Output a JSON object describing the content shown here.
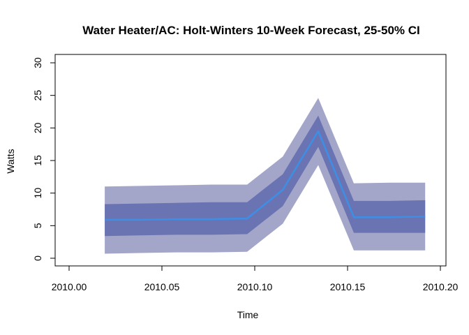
{
  "chart_data": {
    "type": "area",
    "title": "Water Heater/AC: Holt-Winters 10-Week Forecast, 25-50% CI",
    "xlabel": "Time",
    "ylabel": "Watts",
    "xlim": [
      2010.0,
      2010.2
    ],
    "ylim": [
      0,
      30
    ],
    "x_ticks": [
      "2010.00",
      "2010.05",
      "2010.10",
      "2010.15",
      "2010.20"
    ],
    "y_ticks": [
      "0",
      "5",
      "10",
      "15",
      "20",
      "25",
      "30"
    ],
    "grid": false,
    "x": [
      2010.0192,
      2010.0383,
      2010.0575,
      2010.0767,
      2010.0959,
      2010.1151,
      2010.1342,
      2010.1534,
      2010.1726,
      2010.1918
    ],
    "series": [
      {
        "role": "ci50",
        "lower": [
          0.7,
          0.8,
          0.9,
          0.9,
          1.0,
          5.3,
          14.3,
          1.2,
          1.2,
          1.2
        ],
        "upper": [
          11.0,
          11.1,
          11.2,
          11.3,
          11.3,
          15.6,
          24.6,
          11.5,
          11.6,
          11.6
        ]
      },
      {
        "role": "ci25",
        "lower": [
          3.4,
          3.5,
          3.6,
          3.6,
          3.7,
          8.0,
          17.1,
          3.9,
          3.9,
          3.9
        ],
        "upper": [
          8.3,
          8.4,
          8.5,
          8.6,
          8.6,
          12.9,
          21.9,
          8.8,
          8.8,
          8.9
        ]
      },
      {
        "role": "forecast",
        "values": [
          5.9,
          5.9,
          6.0,
          6.0,
          6.1,
          10.5,
          19.5,
          6.3,
          6.3,
          6.4
        ]
      }
    ],
    "colors": {
      "ci50": "#a3a6c8",
      "ci25": "#6b74b2",
      "forecast": "#3d8fe6"
    }
  }
}
